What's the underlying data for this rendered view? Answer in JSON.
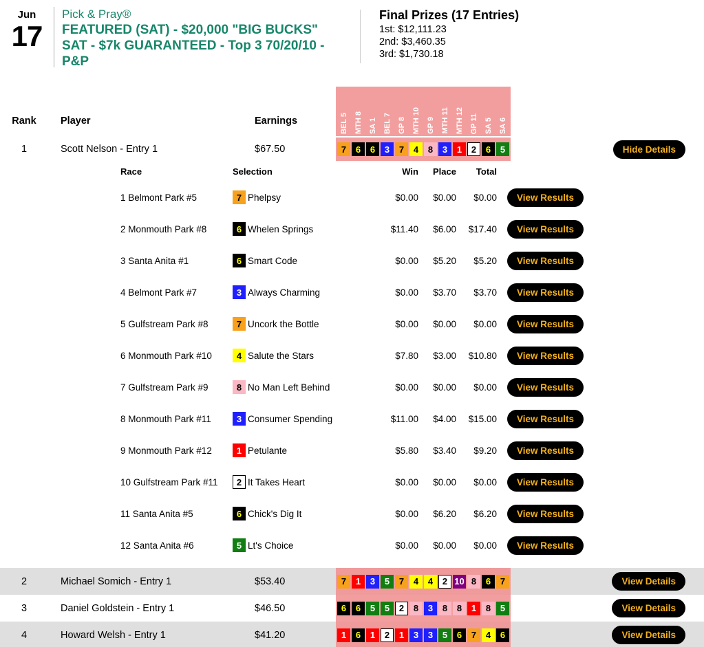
{
  "header": {
    "date_month": "Jun",
    "date_day": "17",
    "contest_name": "Pick & Pray®",
    "contest_title_lines": [
      "FEATURED (SAT) - $20,000 \"BIG BUCKS\"",
      "SAT - $7k GUARANTEED - Top 3 70/20/10 -",
      "P&P"
    ],
    "prizes_title": "Final Prizes (17 Entries)",
    "prizes": [
      "1st: $12,111.23",
      "2nd: $3,460.35",
      "3rd: $1,730.18"
    ]
  },
  "table": {
    "columns": {
      "rank": "Rank",
      "player": "Player",
      "earnings": "Earnings"
    },
    "race_headers": [
      "BEL 5",
      "MTH 8",
      "SA 1",
      "BEL 7",
      "GP 8",
      "MTH 10",
      "GP 9",
      "MTH 11",
      "MTH 12",
      "GP 11",
      "SA 5",
      "SA 6"
    ],
    "rows": [
      {
        "rank": "1",
        "player": "Scott Nelson - Entry 1",
        "earnings": "$67.50",
        "picks": [
          7,
          6,
          6,
          3,
          7,
          4,
          8,
          3,
          1,
          2,
          6,
          5
        ],
        "action": "Hide Details",
        "expanded": true
      },
      {
        "rank": "2",
        "player": "Michael Somich - Entry 1",
        "earnings": "$53.40",
        "picks": [
          7,
          1,
          3,
          5,
          7,
          4,
          4,
          2,
          10,
          8,
          6,
          7
        ],
        "action": "View Details",
        "expanded": false
      },
      {
        "rank": "3",
        "player": "Daniel Goldstein - Entry 1",
        "earnings": "$46.50",
        "picks": [
          6,
          6,
          5,
          5,
          2,
          8,
          3,
          8,
          8,
          1,
          8,
          5
        ],
        "action": "View Details",
        "expanded": false
      },
      {
        "rank": "4",
        "player": "Howard Welsh - Entry 1",
        "earnings": "$41.20",
        "picks": [
          1,
          6,
          1,
          2,
          1,
          3,
          3,
          5,
          6,
          7,
          4,
          6
        ],
        "action": "View Details",
        "expanded": false
      }
    ]
  },
  "details": {
    "columns": {
      "race": "Race",
      "selection": "Selection",
      "win": "Win",
      "place": "Place",
      "total": "Total"
    },
    "button_label": "View Results",
    "races": [
      {
        "race": "1 Belmont Park #5",
        "number": 7,
        "horse": "Phelpsy",
        "win": "$0.00",
        "place": "$0.00",
        "total": "$0.00"
      },
      {
        "race": "2 Monmouth Park #8",
        "number": 6,
        "horse": "Whelen Springs",
        "win": "$11.40",
        "place": "$6.00",
        "total": "$17.40"
      },
      {
        "race": "3 Santa Anita #1",
        "number": 6,
        "horse": "Smart Code",
        "win": "$0.00",
        "place": "$5.20",
        "total": "$5.20"
      },
      {
        "race": "4 Belmont Park #7",
        "number": 3,
        "horse": "Always Charming",
        "win": "$0.00",
        "place": "$3.70",
        "total": "$3.70"
      },
      {
        "race": "5 Gulfstream Park #8",
        "number": 7,
        "horse": "Uncork the Bottle",
        "win": "$0.00",
        "place": "$0.00",
        "total": "$0.00"
      },
      {
        "race": "6 Monmouth Park #10",
        "number": 4,
        "horse": "Salute the Stars",
        "win": "$7.80",
        "place": "$3.00",
        "total": "$10.80"
      },
      {
        "race": "7 Gulfstream Park #9",
        "number": 8,
        "horse": "No Man Left Behind",
        "win": "$0.00",
        "place": "$0.00",
        "total": "$0.00"
      },
      {
        "race": "8 Monmouth Park #11",
        "number": 3,
        "horse": "Consumer Spending",
        "win": "$11.00",
        "place": "$4.00",
        "total": "$15.00"
      },
      {
        "race": "9 Monmouth Park #12",
        "number": 1,
        "horse": "Petulante",
        "win": "$5.80",
        "place": "$3.40",
        "total": "$9.20"
      },
      {
        "race": "10 Gulfstream Park #11",
        "number": 2,
        "horse": "It Takes Heart",
        "win": "$0.00",
        "place": "$0.00",
        "total": "$0.00"
      },
      {
        "race": "11 Santa Anita #5",
        "number": 6,
        "horse": "Chick's Dig It",
        "win": "$0.00",
        "place": "$6.20",
        "total": "$6.20"
      },
      {
        "race": "12 Santa Anita #6",
        "number": 5,
        "horse": "Lt's Choice",
        "win": "$0.00",
        "place": "$0.00",
        "total": "$0.00"
      }
    ]
  },
  "colors": {
    "brand_green": "#17866A",
    "salmon_overlay": "rgba(242,148,148,0.9)",
    "button_bg": "#000000",
    "button_text": "#F2B01B",
    "row_alt": "#DFDFDF",
    "saddle": {
      "1": {
        "bg": "#FF0000",
        "fg": "#FFFFFF"
      },
      "2": {
        "bg": "#FFFFFF",
        "fg": "#000000",
        "border": "#000000"
      },
      "3": {
        "bg": "#2020FF",
        "fg": "#FFFFFF"
      },
      "4": {
        "bg": "#FFFF00",
        "fg": "#000000"
      },
      "5": {
        "bg": "#117E11",
        "fg": "#FFFFFF"
      },
      "6": {
        "bg": "#000000",
        "fg": "#FFFF00"
      },
      "7": {
        "bg": "#F7A11C",
        "fg": "#000000"
      },
      "8": {
        "bg": "#FBB7C4",
        "fg": "#000000"
      },
      "10": {
        "bg": "#800080",
        "fg": "#FFFFFF"
      }
    }
  }
}
